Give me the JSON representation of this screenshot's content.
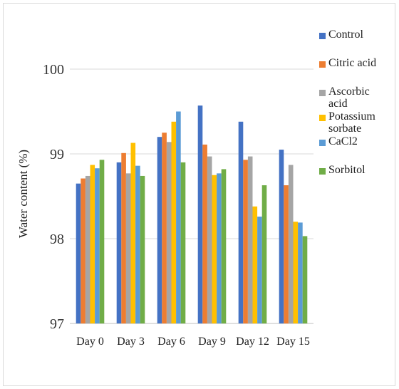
{
  "chart_data": {
    "type": "bar",
    "title": "",
    "xlabel": "",
    "ylabel": "Water content (%)",
    "ylim": [
      97,
      100
    ],
    "yticks": [
      97,
      98,
      99,
      100
    ],
    "grid": true,
    "legend_position": "right",
    "categories": [
      "Day 0",
      "Day 3",
      "Day 6",
      "Day 9",
      "Day 12",
      "Day 15"
    ],
    "series": [
      {
        "name": "Control",
        "color": "#4472c4",
        "values": [
          98.65,
          98.9,
          99.2,
          99.57,
          99.38,
          99.05
        ]
      },
      {
        "name": "Citric acid",
        "color": "#ed7d31",
        "values": [
          98.71,
          99.01,
          99.25,
          99.11,
          98.93,
          98.63
        ]
      },
      {
        "name": "Ascorbic acid",
        "color": "#a5a5a5",
        "values": [
          98.74,
          98.77,
          99.14,
          98.97,
          98.97,
          98.87
        ]
      },
      {
        "name": "Potassium sorbate",
        "color": "#ffc000",
        "values": [
          98.87,
          99.13,
          99.38,
          98.75,
          98.38,
          98.2
        ]
      },
      {
        "name": "CaCl2",
        "color": "#5b9bd5",
        "values": [
          98.83,
          98.86,
          99.5,
          98.77,
          98.26,
          98.19
        ]
      },
      {
        "name": "Sorbitol",
        "color": "#70ad47",
        "values": [
          98.93,
          98.74,
          98.9,
          98.82,
          98.63,
          98.03
        ]
      }
    ]
  },
  "legend": {
    "items": [
      {
        "label": "Control",
        "color": "#4472c4"
      },
      {
        "label": "Citric acid",
        "color": "#ed7d31"
      },
      {
        "label": "Ascorbic acid",
        "color": "#a5a5a5"
      },
      {
        "label": "Potassium sorbate",
        "color": "#ffc000"
      },
      {
        "label": "CaCl2",
        "color": "#5b9bd5"
      },
      {
        "label": "Sorbitol",
        "color": "#70ad47"
      }
    ]
  }
}
